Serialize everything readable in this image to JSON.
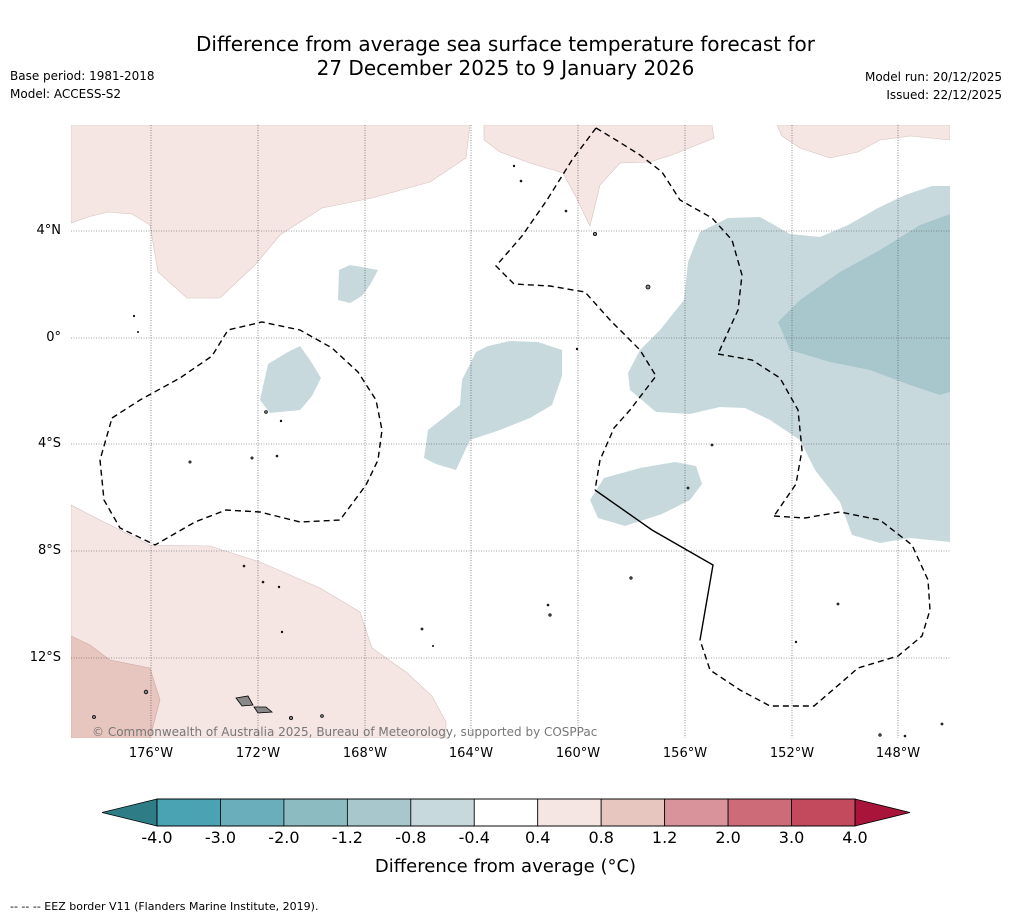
{
  "header": {
    "title_line1": "Difference from average sea surface temperature forecast for",
    "title_line2": "27 December 2025 to 9 January 2026",
    "base_period": "Base period: 1981-2018",
    "model": "Model: ACCESS-S2",
    "model_run": "Model run: 20/12/2025",
    "issued": "Issued: 22/12/2025"
  },
  "map": {
    "lat_labels": [
      "4°N",
      "0°",
      "4°S",
      "8°S",
      "12°S"
    ],
    "lon_labels": [
      "176°W",
      "172°W",
      "168°W",
      "164°W",
      "160°W",
      "156°W",
      "152°W",
      "148°W"
    ],
    "copyright": "© Commonwealth of Australia 2025, Bureau of Meteorology, supported by COSPPac"
  },
  "colorbar": {
    "ticks": [
      "-4.0",
      "-3.0",
      "-2.0",
      "-1.2",
      "-0.8",
      "-0.4",
      "0.4",
      "0.8",
      "1.2",
      "2.0",
      "3.0",
      "4.0"
    ],
    "colors": [
      "#4aa3b3",
      "#6aaebb",
      "#8dbbc2",
      "#a8c7cc",
      "#c7d9dd",
      "#ffffff",
      "#f5e6e4",
      "#e8c6c0",
      "#d9939a",
      "#cd6c78",
      "#c24a5c"
    ],
    "under_color": "#2e7d86",
    "over_color": "#a8143a",
    "label": "Difference from average (°C)"
  },
  "footnote": "--  --  -- EEZ border V11 (Flanders Marine Institute, 2019)."
}
